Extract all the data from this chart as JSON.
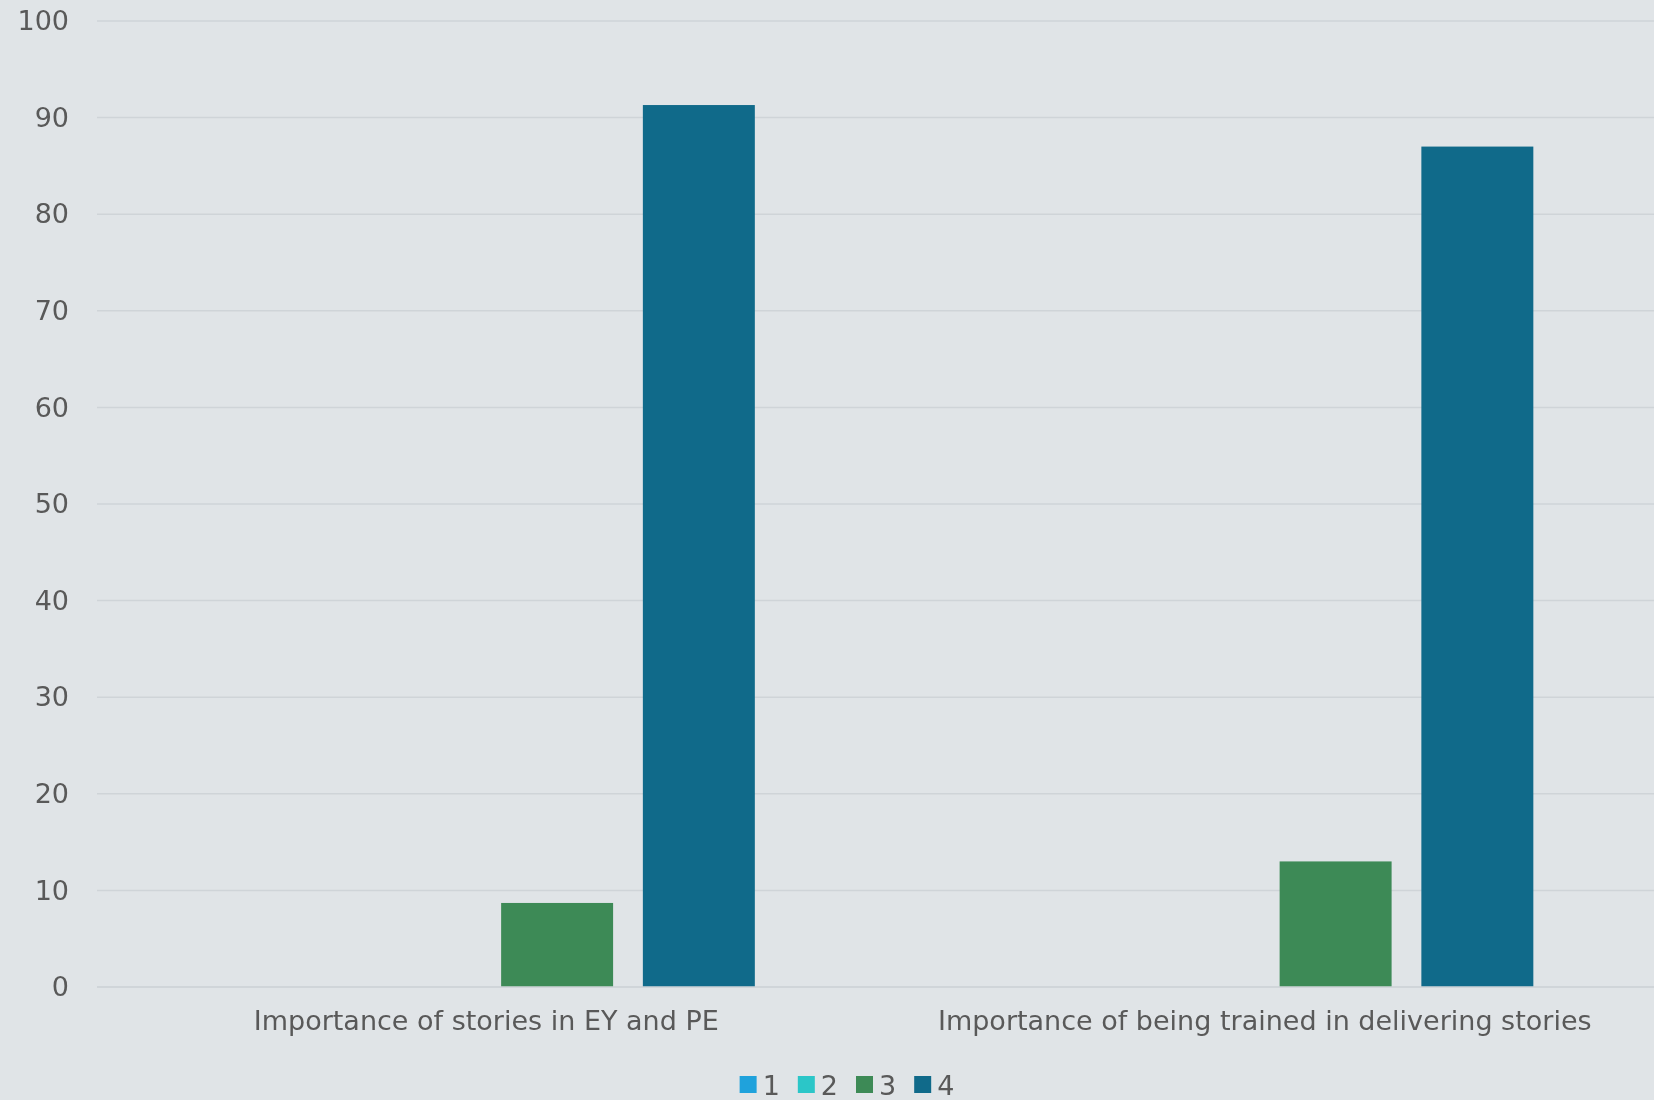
{
  "chart_data": {
    "type": "bar",
    "categories": [
      "Importance of stories in EY and PE",
      "Importance of being trained in delivering stories"
    ],
    "series": [
      {
        "name": "1",
        "color": "#1fa2dc",
        "values": [
          0,
          0
        ]
      },
      {
        "name": "2",
        "color": "#2bc6c8",
        "values": [
          0,
          0
        ]
      },
      {
        "name": "3",
        "color": "#3d8a56",
        "values": [
          8.7,
          13
        ]
      },
      {
        "name": "4",
        "color": "#106a8a",
        "values": [
          91.3,
          87
        ]
      }
    ],
    "ylim": [
      0,
      100
    ],
    "yticks": [
      0,
      10,
      20,
      30,
      40,
      50,
      60,
      70,
      80,
      90,
      100
    ],
    "grid": "y",
    "legend": "bottom"
  }
}
